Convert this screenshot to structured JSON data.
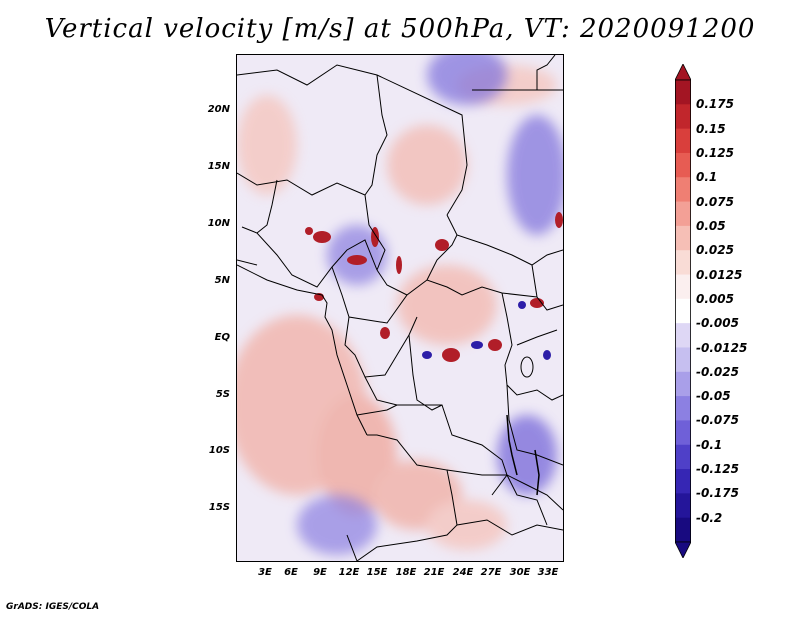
{
  "title": "Vertical velocity [m/s] at 500hPa, VT: 2020091200",
  "credit": "GrADS: IGES/COLA",
  "axes": {
    "lat_labels": [
      "20N",
      "15N",
      "10N",
      "5N",
      "EQ",
      "5S",
      "10S",
      "15S"
    ],
    "lon_labels": [
      "3E",
      "6E",
      "9E",
      "12E",
      "15E",
      "18E",
      "21E",
      "24E",
      "27E",
      "30E",
      "33E"
    ]
  },
  "colorbar": {
    "labels": [
      "0.175",
      "0.15",
      "0.125",
      "0.1",
      "0.075",
      "0.05",
      "0.025",
      "0.0125",
      "0.005",
      "-0.005",
      "-0.0125",
      "-0.025",
      "-0.05",
      "-0.075",
      "-0.1",
      "-0.125",
      "-0.175",
      "-0.2"
    ],
    "colors": [
      "#a31523",
      "#c1262c",
      "#d93f3c",
      "#e75c53",
      "#ef7f73",
      "#f3a096",
      "#f6bfb6",
      "#f9dcd6",
      "#fbefef",
      "#ffffff",
      "#ded7f5",
      "#c6bff0",
      "#a99fe9",
      "#8c80e2",
      "#6f60d8",
      "#4f40c8",
      "#3626b4",
      "#24159a",
      "#180a80"
    ],
    "top_arrow_color": "#a31523",
    "bottom_arrow_color": "#180a80"
  }
}
